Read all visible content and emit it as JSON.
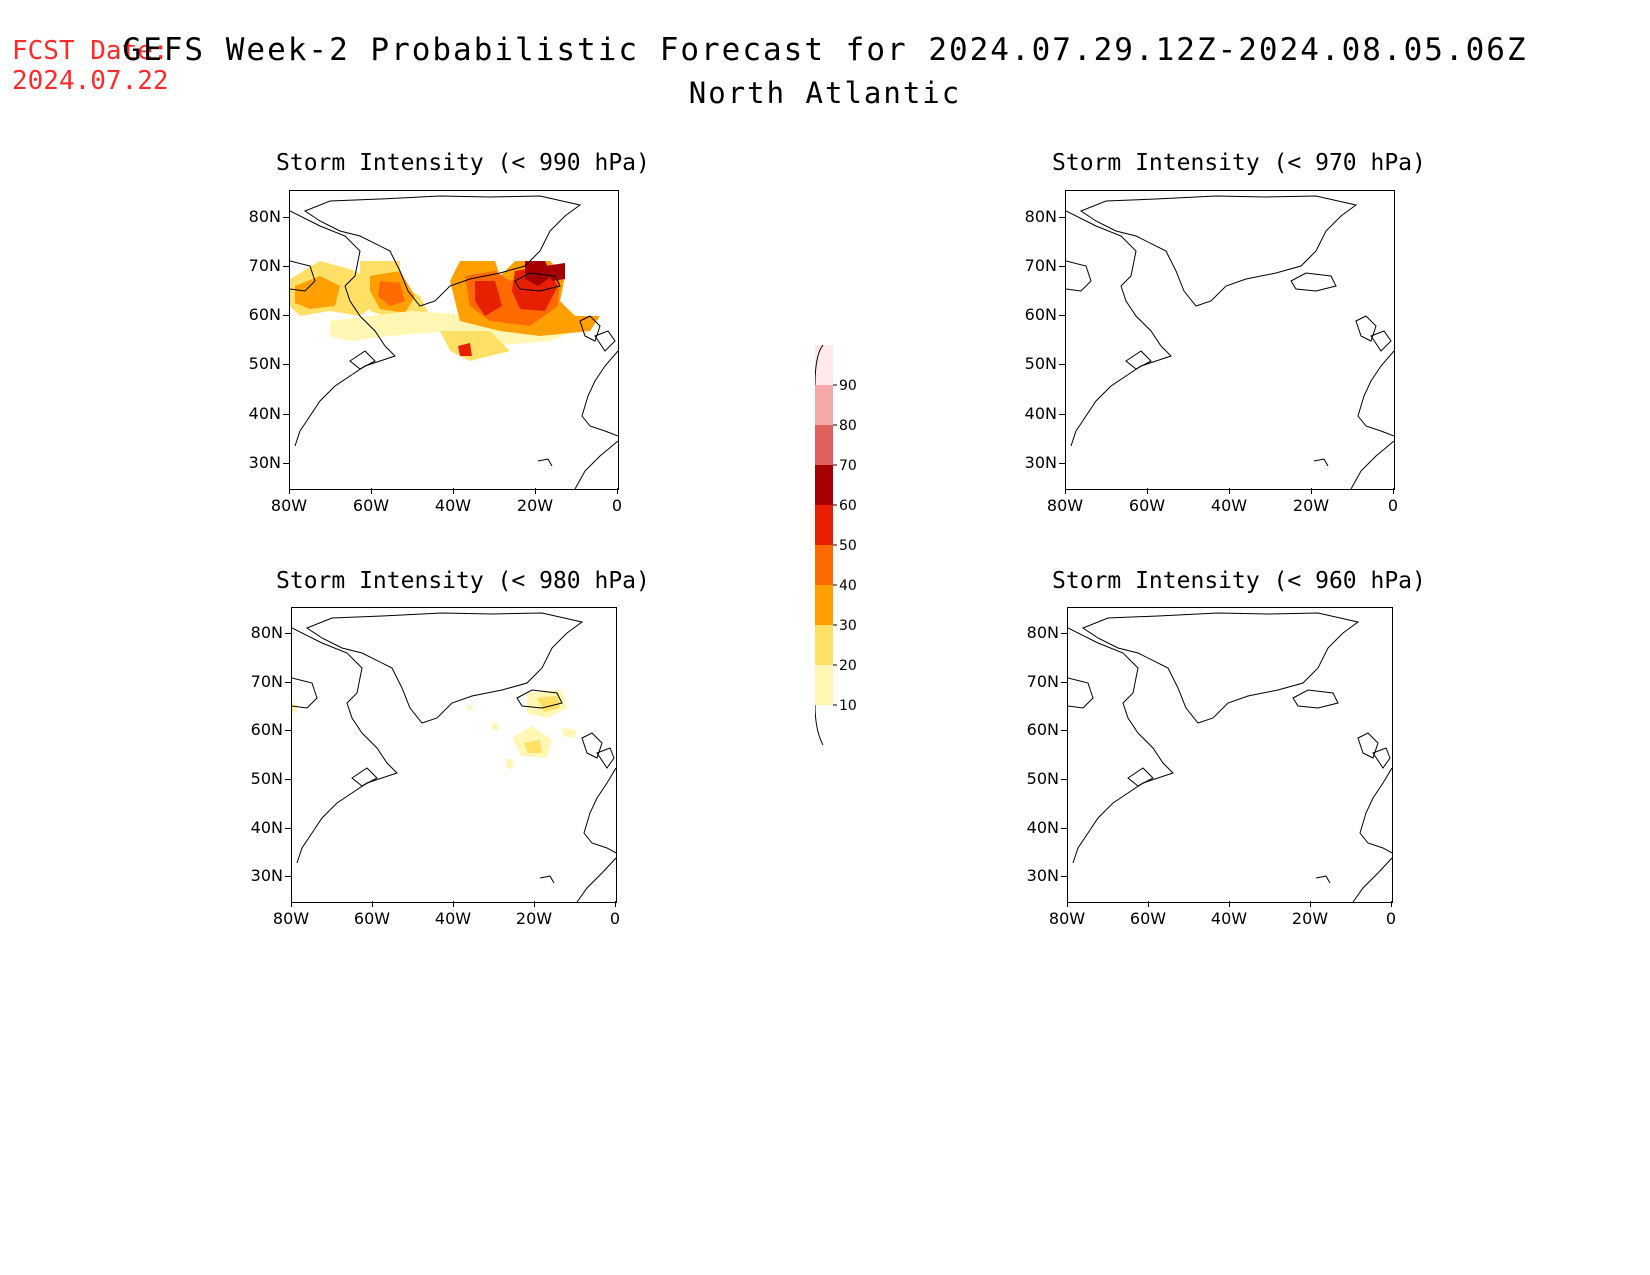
{
  "header": {
    "fcst_label": "FCST Date:",
    "fcst_date": "2024.07.22",
    "title": "GEFS Week-2 Probabilistic Forecast for 2024.07.29.12Z-2024.08.05.06Z",
    "subtitle": "North Atlantic"
  },
  "panels": [
    {
      "title": "Storm Intensity (< 990 hPa)"
    },
    {
      "title": "Storm Intensity (< 970 hPa)"
    },
    {
      "title": "Storm Intensity (< 980 hPa)"
    },
    {
      "title": "Storm Intensity (< 960 hPa)"
    }
  ],
  "axes": {
    "lat_labels": [
      "80N",
      "70N",
      "60N",
      "50N",
      "40N",
      "30N"
    ],
    "lon_labels": [
      "80W",
      "60W",
      "40W",
      "20W",
      "0"
    ]
  },
  "colorbar": {
    "levels": [
      "10",
      "20",
      "30",
      "40",
      "50",
      "60",
      "70",
      "80",
      "90"
    ],
    "colors": [
      "#fff7b3",
      "#ffe066",
      "#ff9f00",
      "#ff6a00",
      "#e82000",
      "#a60000",
      "#e06060",
      "#f4a8a8",
      "#ffe8ea"
    ]
  }
}
